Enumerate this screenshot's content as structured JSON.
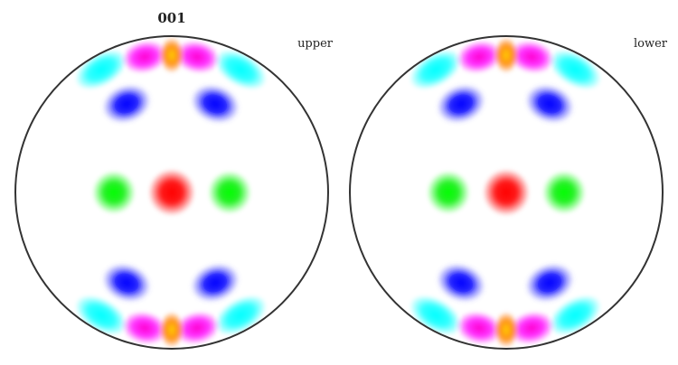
{
  "figure": {
    "title": "001",
    "panels": [
      {
        "label": "upper"
      },
      {
        "label": "lower"
      }
    ]
  },
  "colors": {
    "outline": "#333333",
    "background": "#ffffff",
    "red": "#ff0000",
    "green": "#00ff00",
    "blue": "#0000ff",
    "cyan": "#00ffff",
    "magenta": "#ff00ff",
    "orange": "#ffa500"
  }
}
